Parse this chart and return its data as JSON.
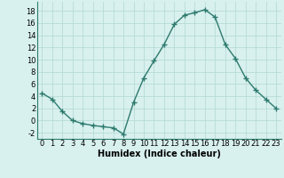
{
  "x": [
    0,
    1,
    2,
    3,
    4,
    5,
    6,
    7,
    8,
    9,
    10,
    11,
    12,
    13,
    14,
    15,
    16,
    17,
    18,
    19,
    20,
    21,
    22,
    23
  ],
  "y": [
    4.5,
    3.5,
    1.5,
    0.0,
    -0.5,
    -0.8,
    -1.0,
    -1.2,
    -2.2,
    3.0,
    7.0,
    9.8,
    12.5,
    15.8,
    17.3,
    17.7,
    18.2,
    17.0,
    12.5,
    10.2,
    7.0,
    5.0,
    3.5,
    2.0
  ],
  "line_color": "#2d7a6e",
  "marker": "+",
  "markersize": 4,
  "linewidth": 1.0,
  "bg_color": "#d8f0ee",
  "grid_color": "#b0d8d4",
  "xlabel": "Humidex (Indice chaleur)",
  "xlabel_fontsize": 7,
  "tick_fontsize": 6,
  "xlim": [
    -0.5,
    23.5
  ],
  "ylim": [
    -3,
    19.5
  ],
  "yticks": [
    -2,
    0,
    2,
    4,
    6,
    8,
    10,
    12,
    14,
    16,
    18
  ],
  "xticks": [
    0,
    1,
    2,
    3,
    4,
    5,
    6,
    7,
    8,
    9,
    10,
    11,
    12,
    13,
    14,
    15,
    16,
    17,
    18,
    19,
    20,
    21,
    22,
    23
  ]
}
